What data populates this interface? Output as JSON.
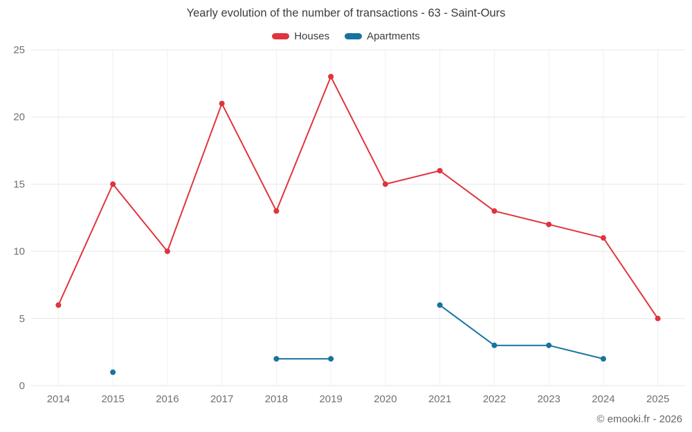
{
  "title": "Yearly evolution of the number of transactions - 63 - Saint-Ours",
  "footer": "© emooki.fr - 2026",
  "legend": [
    {
      "label": "Houses",
      "color": "#e0333c"
    },
    {
      "label": "Apartments",
      "color": "#16739e"
    }
  ],
  "chart_data": {
    "type": "line",
    "title": "Yearly evolution of the number of transactions - 63 - Saint-Ours",
    "categories": [
      "2014",
      "2015",
      "2016",
      "2017",
      "2018",
      "2019",
      "2020",
      "2021",
      "2022",
      "2023",
      "2024",
      "2025"
    ],
    "series": [
      {
        "name": "Houses",
        "color": "#e0333c",
        "values": [
          6,
          15,
          10,
          21,
          13,
          23,
          15,
          16,
          13,
          12,
          11,
          5
        ]
      },
      {
        "name": "Apartments",
        "color": "#16739e",
        "values": [
          null,
          1,
          null,
          null,
          2,
          2,
          null,
          6,
          3,
          3,
          2,
          null
        ]
      }
    ],
    "xlabel": "",
    "ylabel": "",
    "ylim": [
      0,
      25
    ],
    "yticks": [
      0,
      5,
      10,
      15,
      20,
      25
    ],
    "grid": true,
    "legend_position": "top",
    "marker": "circle"
  }
}
